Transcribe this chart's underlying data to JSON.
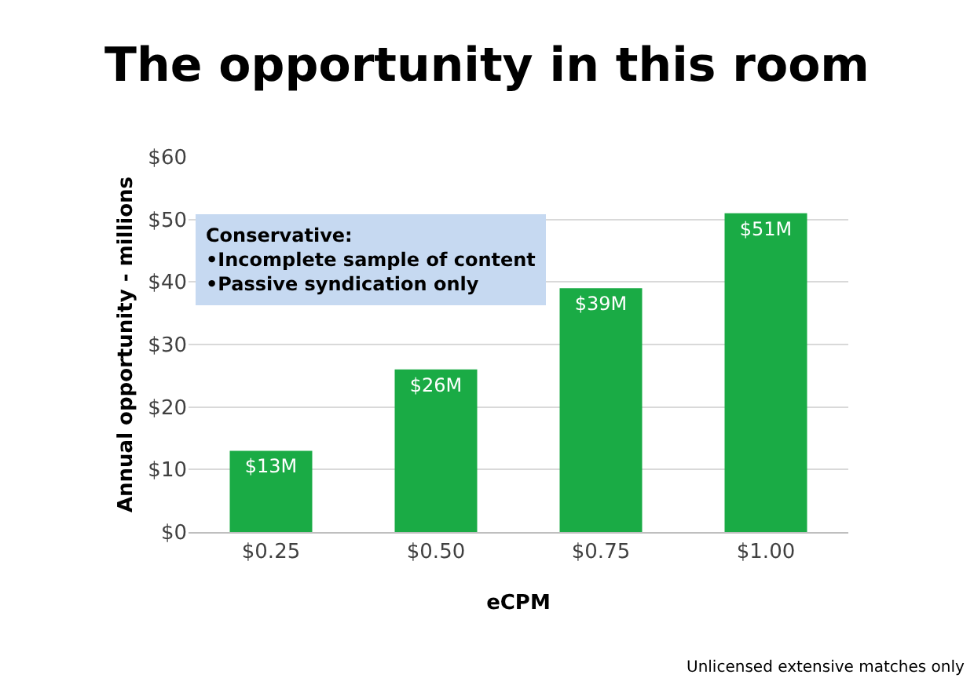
{
  "chart_data": {
    "type": "bar",
    "title": "The opportunity in this room",
    "xlabel": "eCPM",
    "ylabel": "Annual opportunity - millions",
    "categories": [
      "$0.25",
      "$0.50",
      "$0.75",
      "$1.00"
    ],
    "values": [
      13,
      26,
      39,
      51
    ],
    "value_labels": [
      "$13M",
      "$26M",
      "$39M",
      "$51M"
    ],
    "color": "#1aab45",
    "ylim": [
      0,
      60
    ],
    "yticks": [
      {
        "value": 0,
        "label": "$0"
      },
      {
        "value": 10,
        "label": "$10"
      },
      {
        "value": 20,
        "label": "$20"
      },
      {
        "value": 30,
        "label": "$30"
      },
      {
        "value": 40,
        "label": "$40"
      },
      {
        "value": 50,
        "label": "$50"
      },
      {
        "value": 60,
        "label": "$60"
      }
    ],
    "grid": "y",
    "annotations": [
      "Conservative:\n•Incomplete sample of content\n•Passive syndication only",
      "Unlicensed extensive matches only"
    ]
  }
}
